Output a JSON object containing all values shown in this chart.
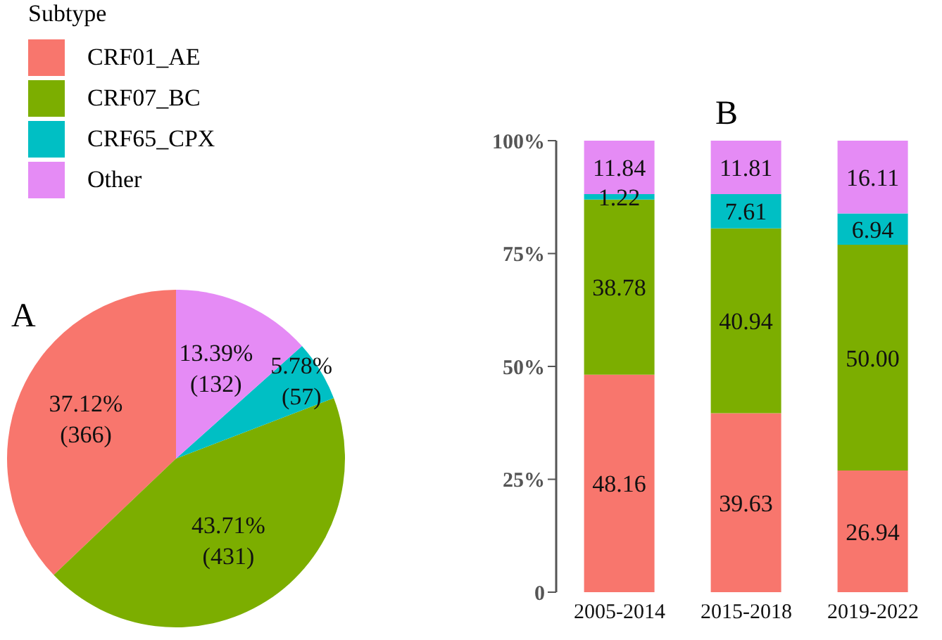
{
  "chart_data": [
    {
      "type": "pie",
      "title": "A",
      "legend_title": "Subtype",
      "legend": "top left",
      "categories": [
        "CRF01_AE",
        "CRF07_BC",
        "CRF65_CPX",
        "Other"
      ],
      "values": [
        366,
        431,
        57,
        132
      ],
      "value_labels": [
        "37.12%\n(366)",
        "43.71%\n(431)",
        "5.78%\n(57)",
        "13.39%\n(132)"
      ],
      "colors": [
        "#f8766d",
        "#7cae00",
        "#00bfc4",
        "#e58bf5"
      ]
    },
    {
      "type": "bar",
      "title": "B",
      "stacked": true,
      "categories": [
        "2005-2014",
        "2015-2018",
        "2019-2022"
      ],
      "ylim": [
        0,
        100
      ],
      "yticks": [
        {
          "value": 0,
          "label": "0"
        },
        {
          "value": 25,
          "label": "25%"
        },
        {
          "value": 50,
          "label": "50%"
        },
        {
          "value": 75,
          "label": "75%"
        },
        {
          "value": 100,
          "label": "100%"
        }
      ],
      "series": [
        {
          "color": "#f8766d",
          "values": [
            48.16,
            39.63,
            26.94
          ],
          "value_labels": [
            "48.16",
            "39.63",
            "26.94"
          ]
        },
        {
          "color": "#7cae00",
          "values": [
            38.78,
            40.94,
            50.0
          ],
          "value_labels": [
            "38.78",
            "40.94",
            "50.00"
          ]
        },
        {
          "color": "#00bfc4",
          "values": [
            1.22,
            7.61,
            6.94
          ],
          "value_labels": [
            "1.22",
            "7.61",
            "6.94"
          ]
        },
        {
          "color": "#e58bf5",
          "values": [
            11.84,
            11.81,
            16.11
          ],
          "value_labels": [
            "11.84",
            "11.81",
            "16.11"
          ]
        }
      ]
    }
  ]
}
